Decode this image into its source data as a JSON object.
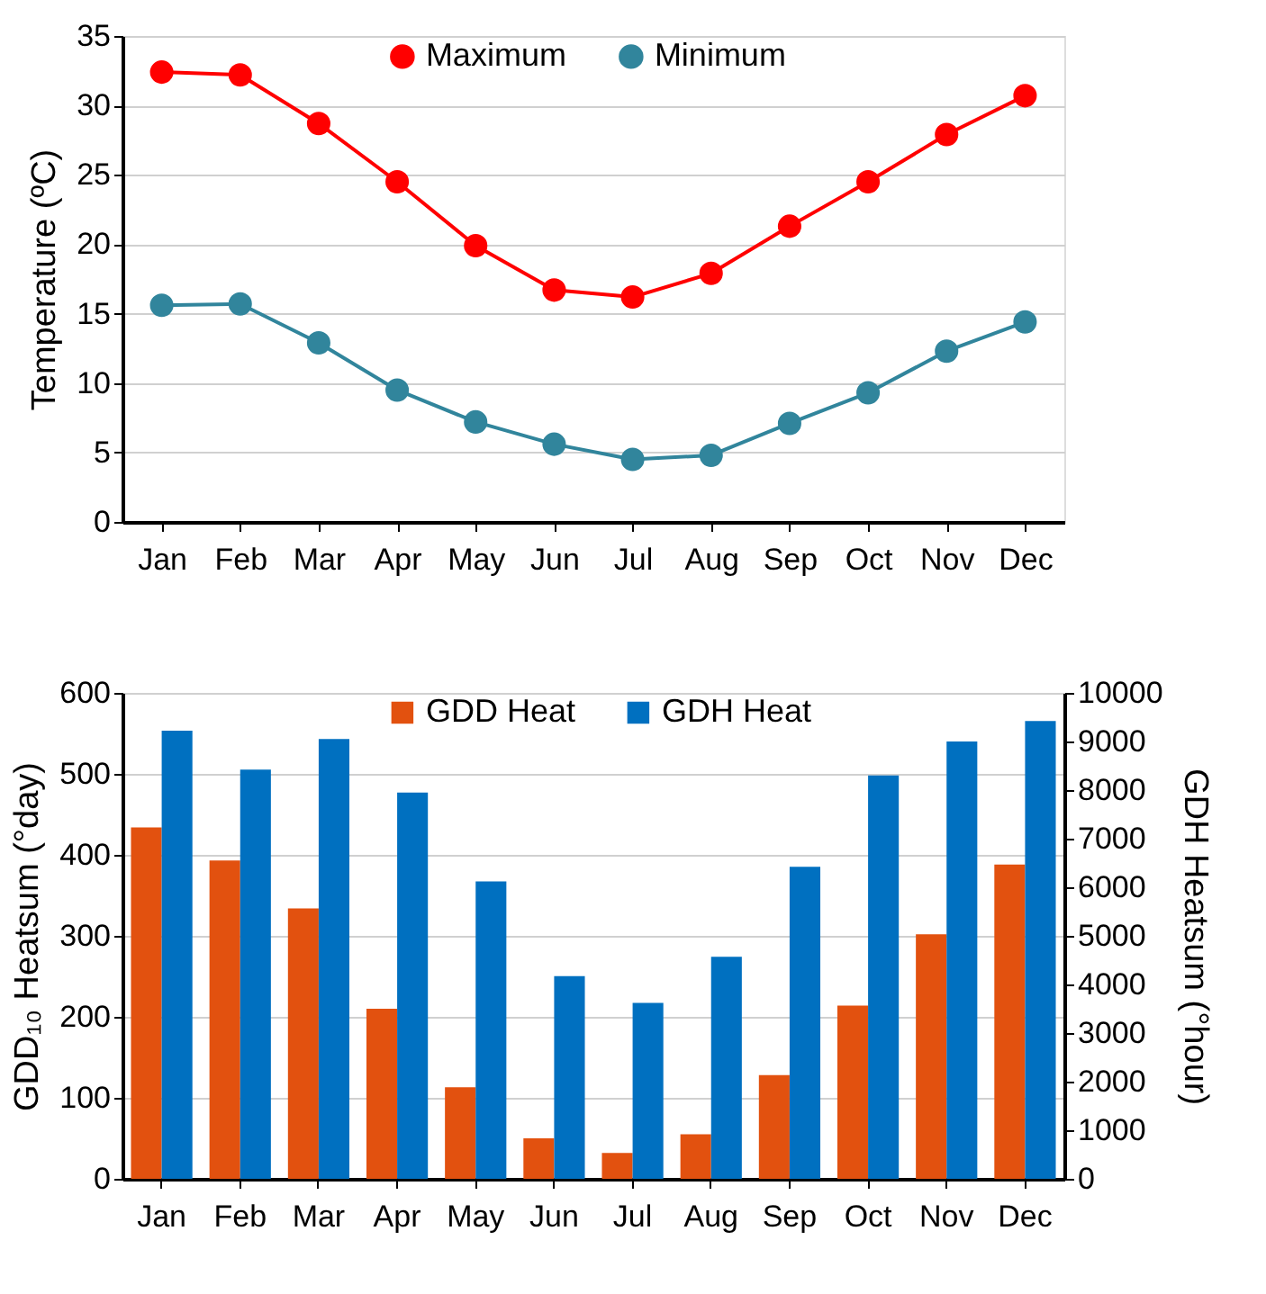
{
  "chart_data": [
    {
      "type": "line",
      "categories": [
        "Jan",
        "Feb",
        "Mar",
        "Apr",
        "May",
        "Jun",
        "Jul",
        "Aug",
        "Sep",
        "Oct",
        "Nov",
        "Dec"
      ],
      "ylabel": "Temperature (ºC)",
      "ylim": [
        0,
        35
      ],
      "yticks": [
        0,
        5,
        10,
        15,
        20,
        25,
        30,
        35
      ],
      "grid": "y",
      "legend": "top",
      "marker": "circle",
      "line_style": "solid",
      "series": [
        {
          "name": "Maximum",
          "color": "#ff0000",
          "values": [
            32.4,
            32.2,
            28.7,
            24.5,
            19.9,
            16.7,
            16.2,
            17.9,
            21.3,
            24.5,
            27.9,
            30.7
          ]
        },
        {
          "name": "Minimum",
          "color": "#31859c",
          "values": [
            15.6,
            15.7,
            12.9,
            9.5,
            7.2,
            5.6,
            4.5,
            4.8,
            7.1,
            9.3,
            12.3,
            14.4
          ]
        }
      ]
    },
    {
      "type": "bar",
      "categories": [
        "Jan",
        "Feb",
        "Mar",
        "Apr",
        "May",
        "Jun",
        "Jul",
        "Aug",
        "Sep",
        "Oct",
        "Nov",
        "Dec"
      ],
      "ylabel": "GDD₁₀ Heatsum (°day)",
      "y2label": "GDH Heatsum (°hour)",
      "ylim": [
        0,
        600
      ],
      "yticks": [
        0,
        100,
        200,
        300,
        400,
        500,
        600
      ],
      "y2lim": [
        0,
        10000
      ],
      "y2ticks": [
        0,
        1000,
        2000,
        3000,
        4000,
        5000,
        6000,
        7000,
        8000,
        9000,
        10000
      ],
      "grid": "y",
      "legend": "top",
      "series": [
        {
          "name": "GDD Heat",
          "color": "#e2510f",
          "values": [
            434,
            393,
            334,
            210,
            113,
            50,
            32,
            55,
            128,
            214,
            302,
            388
          ]
        },
        {
          "name": "GDH Heat",
          "color": "#0070c0",
          "axis": "y2",
          "values": [
            9220,
            8420,
            9050,
            7950,
            6120,
            4170,
            3620,
            4570,
            6420,
            8300,
            9000,
            9420
          ]
        }
      ]
    }
  ]
}
